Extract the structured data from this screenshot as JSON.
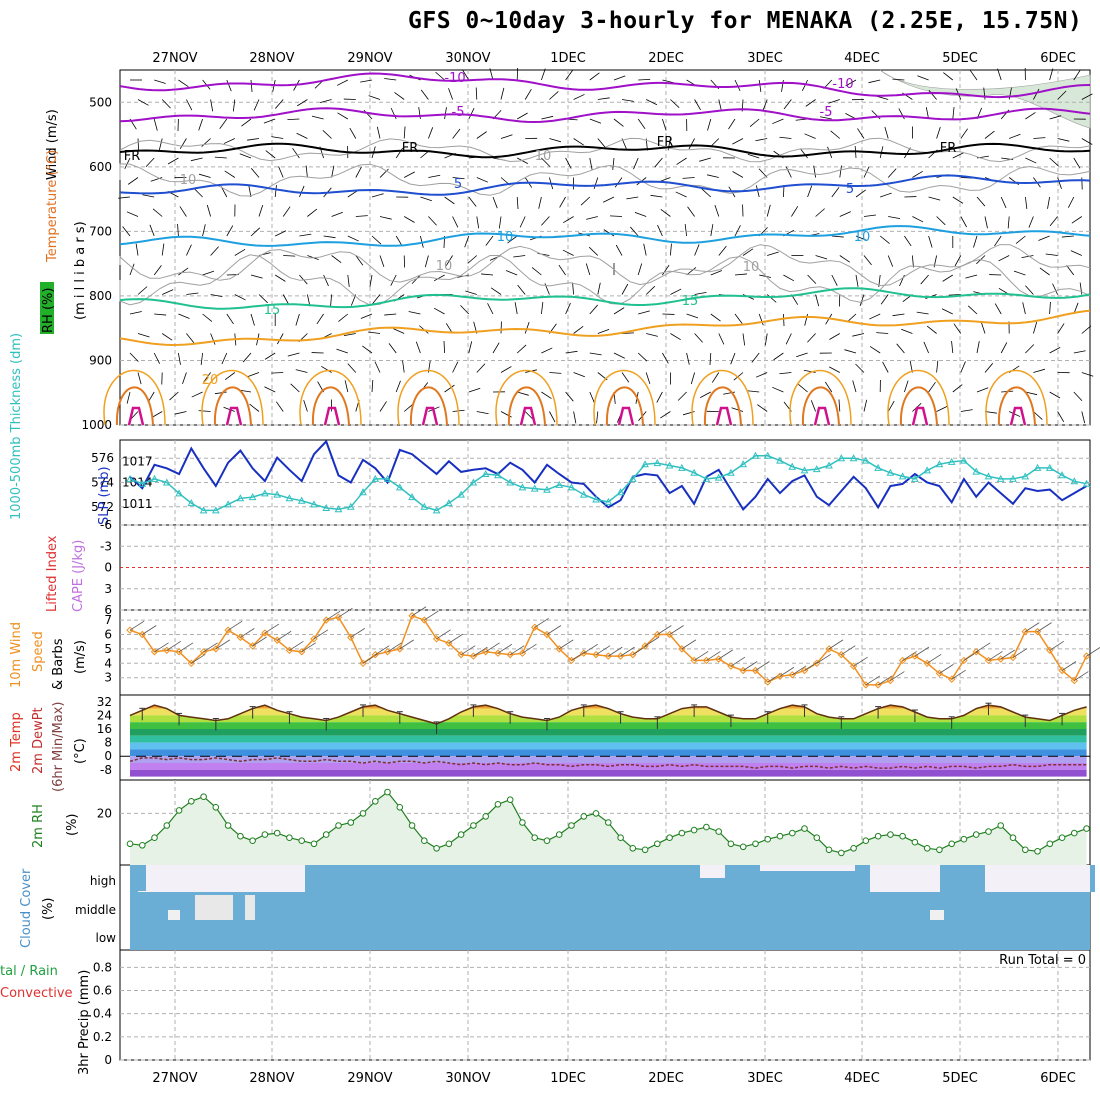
{
  "title": "GFS 0~10day 3-hourly for MENAKA (2.25E, 15.75N)",
  "colors": {
    "purple": "#a010c8",
    "black": "#000000",
    "blue": "#1f4fd0",
    "lightblue": "#1ea0e0",
    "green": "#20c090",
    "orange": "#f0a020",
    "darkorange": "#e07820",
    "magenta": "#d0108c",
    "gray": "#a0a0a0",
    "slp": "#1830c0",
    "thick": "#30c0c0",
    "wind10": "#f09020",
    "rh2m": "#208020",
    "cloud": "#6aaed6",
    "li": "#e03030"
  },
  "chart_data": [
    {
      "type": "line",
      "name": "upper-air",
      "title": "Wind (m/s) / Temperature (°C) / RH (%)",
      "ylabel": "(millibars)",
      "yticks": [
        "500",
        "600",
        "700",
        "800",
        "900",
        "1000"
      ],
      "ylim": [
        1000,
        450
      ],
      "x_dates": [
        "27NOV",
        "28NOV",
        "29NOV",
        "30NOV",
        "1DEC",
        "2DEC",
        "3DEC",
        "4DEC",
        "5DEC",
        "6DEC"
      ],
      "isotherms": [
        {
          "label": "-10",
          "color": "purple",
          "pressure": 475
        },
        {
          "label": "-5",
          "color": "purple",
          "pressure": 520
        },
        {
          "label": "FR",
          "color": "black",
          "pressure": 575
        },
        {
          "label": "5",
          "color": "blue",
          "pressure": 640
        },
        {
          "label": "10",
          "color": "lightblue",
          "pressure": 720
        },
        {
          "label": "15",
          "color": "green",
          "pressure": 815
        },
        {
          "label": "20",
          "color": "orange",
          "pressure": 870
        }
      ],
      "contour_labels": [
        "-10",
        "-5",
        "FR",
        "5",
        "10",
        "15",
        "20",
        "-10",
        "-5",
        "FR",
        "5",
        "10",
        "15",
        "FR",
        "10",
        "10",
        "10",
        "10",
        "FR",
        "FR"
      ]
    },
    {
      "type": "line",
      "name": "thickness-slp",
      "ylabel_left": "1000-500mb Thickness (dm)",
      "ylabel_right": "SLP (mb)",
      "yticks_left": [
        "576",
        "574",
        "572"
      ],
      "yticks_right": [
        "1017",
        "1014",
        "1011"
      ],
      "series": [
        {
          "name": "SLP",
          "unit": "mb",
          "values": [
            1014.8,
            1013.2,
            1016.5,
            1016.0,
            1015.2,
            1018.8,
            1016.0,
            1013.5,
            1016.8,
            1018.5,
            1016.0,
            1014.2,
            1017.5,
            1015.8,
            1014.2,
            1018.0,
            1019.8,
            1015.0,
            1014.0,
            1017.2,
            1016.0,
            1014.0,
            1018.6,
            1018.0,
            1016.6,
            1015.2,
            1017.0,
            1015.5,
            1015.8,
            1016.0,
            1015.2,
            1016.8,
            1015.8,
            1014.0,
            1016.5,
            1015.2,
            1014.0,
            1013.8,
            1012.0,
            1010.5,
            1011.5,
            1014.8,
            1015.2,
            1015.0,
            1012.5,
            1013.5,
            1011.0,
            1014.8,
            1015.8,
            1013.0,
            1010.2,
            1012.0,
            1014.5,
            1012.5,
            1014.2,
            1015.0,
            1012.0,
            1010.8,
            1012.8,
            1014.8,
            1013.2,
            1010.5,
            1013.5,
            1013.8,
            1015.2,
            1014.0,
            1013.5,
            1011.2,
            1014.5,
            1012.0,
            1014.0,
            1012.5,
            1011.0,
            1013.2,
            1012.8,
            1013.0,
            1011.5,
            1012.5,
            1013.5
          ]
        },
        {
          "name": "1000-500mb Thickness",
          "unit": "dm",
          "values": [
            574.3,
            573.9,
            574.3,
            574.0,
            573.1,
            572.3,
            571.7,
            571.7,
            572.2,
            572.7,
            572.8,
            573.1,
            573.0,
            572.7,
            572.5,
            572.2,
            571.9,
            571.8,
            572.0,
            573.2,
            574.3,
            574.3,
            573.6,
            572.8,
            572.0,
            571.7,
            572.3,
            573.0,
            574.0,
            574.7,
            574.6,
            574.0,
            573.6,
            573.5,
            573.4,
            573.8,
            573.6,
            573.0,
            572.6,
            572.4,
            573.2,
            574.3,
            575.5,
            575.6,
            575.4,
            575.2,
            574.8,
            574.3,
            574.4,
            574.8,
            575.5,
            576.2,
            576.2,
            575.8,
            575.3,
            575.0,
            575.1,
            575.4,
            576.0,
            576.0,
            575.8,
            575.2,
            574.8,
            574.5,
            574.3,
            575.0,
            575.5,
            575.7,
            575.8,
            574.9,
            574.5,
            574.3,
            574.3,
            574.5,
            575.2,
            575.2,
            574.6,
            574.1,
            573.9
          ]
        }
      ]
    },
    {
      "type": "line",
      "name": "lifted-index-cape",
      "ylabel_left": "Lifted Index",
      "ylabel_right": "CAPE (J/kg)",
      "yticks": [
        "-6",
        "-3",
        "0",
        "3",
        "6"
      ],
      "ylim": [
        -6,
        6
      ],
      "series": [
        {
          "name": "Lifted Index",
          "values": [
            0
          ]
        }
      ]
    },
    {
      "type": "line",
      "name": "wind10m",
      "ylabel": "10m Wind Speed & Barbs (m/s)",
      "yticks": [
        "7",
        "6",
        "5",
        "4",
        "3"
      ],
      "ylim": [
        2,
        7.5
      ],
      "series": [
        {
          "name": "10m Wind Speed",
          "unit": "m/s",
          "values": [
            6.3,
            6.0,
            4.8,
            4.9,
            4.8,
            4.0,
            4.8,
            5.0,
            6.3,
            5.8,
            5.2,
            6.1,
            5.6,
            4.9,
            4.8,
            5.7,
            7.0,
            7.2,
            5.8,
            4.0,
            4.6,
            4.8,
            5.0,
            7.3,
            7.0,
            5.7,
            5.4,
            4.6,
            4.5,
            4.8,
            4.7,
            4.6,
            4.7,
            6.5,
            6.0,
            5.0,
            4.2,
            4.7,
            4.6,
            4.5,
            4.5,
            4.6,
            5.2,
            6.0,
            6.0,
            5.0,
            4.2,
            4.2,
            4.3,
            3.8,
            3.5,
            3.5,
            2.7,
            3.1,
            3.2,
            3.5,
            4.0,
            5.0,
            4.6,
            3.8,
            2.5,
            2.5,
            2.8,
            4.2,
            4.5,
            4.0,
            3.3,
            2.9,
            4.2,
            4.8,
            4.2,
            4.3,
            4.4,
            6.2,
            6.2,
            4.9,
            3.5,
            2.8,
            4.5
          ]
        }
      ]
    },
    {
      "type": "area",
      "name": "temp-dewpt",
      "ylabel": "2m Temp / 2m DewPt (6hr Min/Max) (°C)",
      "yticks": [
        "32",
        "24",
        "16",
        "8",
        "0",
        "-8"
      ],
      "ylim": [
        -12,
        34
      ],
      "series": [
        {
          "name": "2m Temp",
          "unit": "°C",
          "values": [
            24,
            27,
            30,
            28,
            24,
            23,
            22,
            21,
            22,
            25,
            28,
            30,
            27,
            25,
            23,
            22,
            21,
            23,
            26,
            29,
            30,
            27,
            25,
            23,
            21,
            19,
            22,
            26,
            29,
            30,
            28,
            25,
            23,
            22,
            21,
            23,
            27,
            29,
            30,
            28,
            25,
            23,
            22,
            22,
            25,
            28,
            29,
            29,
            26,
            23,
            22,
            22,
            25,
            28,
            30,
            29,
            25,
            23,
            22,
            22,
            25,
            28,
            30,
            29,
            26,
            23,
            22,
            22,
            24,
            28,
            30,
            29,
            26,
            23,
            22,
            21,
            24,
            27,
            29
          ]
        },
        {
          "name": "2m DewPt",
          "unit": "°C",
          "values": [
            -3,
            -1,
            -1,
            -2,
            -1,
            -2,
            -2,
            -1,
            -2,
            -3,
            -2,
            -2,
            -1,
            -2,
            -3,
            -3,
            -2,
            -3,
            -3,
            -4,
            -3,
            -4,
            -3,
            -3,
            -4,
            -3,
            -4,
            -5,
            -4,
            -5,
            -4,
            -5,
            -5,
            -4,
            -5,
            -5,
            -6,
            -5,
            -5,
            -6,
            -5,
            -5,
            -6,
            -6,
            -5,
            -6,
            -5,
            -6,
            -6,
            -6,
            -6,
            -7,
            -6,
            -6,
            -7,
            -6,
            -6,
            -7,
            -6,
            -7,
            -6,
            -7,
            -7,
            -6,
            -7,
            -6,
            -7,
            -6,
            -6,
            -7,
            -6,
            -6,
            -5,
            -6,
            -6,
            -5,
            -5,
            -5,
            -5
          ]
        }
      ]
    },
    {
      "type": "area",
      "name": "rh2m",
      "ylabel": "2m RH (%)",
      "yticks": [
        "20"
      ],
      "ylim": [
        3,
        31
      ],
      "series": [
        {
          "name": "2m RH",
          "unit": "%",
          "values": [
            10,
            9.5,
            12,
            16,
            21,
            24,
            25.5,
            22,
            16,
            12.5,
            11,
            13,
            13.5,
            12,
            11,
            10,
            13,
            16,
            17,
            20,
            24,
            27,
            22,
            16,
            11,
            8.5,
            10,
            13,
            16,
            19,
            23,
            24.5,
            17,
            12,
            11,
            13,
            16,
            19,
            20,
            17,
            12,
            8.5,
            8,
            10,
            12,
            13.5,
            14.5,
            15.5,
            14,
            10,
            9,
            10,
            11.5,
            12.5,
            13.5,
            15,
            12,
            8,
            7,
            8.5,
            11,
            12.5,
            13,
            12.5,
            10.5,
            8.5,
            8,
            10,
            11.5,
            13,
            14,
            16,
            12,
            8,
            7.5,
            10,
            12,
            13.5,
            15
          ]
        }
      ]
    },
    {
      "type": "bar",
      "name": "cloud-cover",
      "ylabel": "Cloud Cover (%)",
      "ylevels": [
        "high",
        "middle",
        "low"
      ]
    },
    {
      "type": "bar",
      "name": "precip",
      "ylabel_left": "3hr Precip (mm)",
      "ylabel_legend": [
        "Total / Rain",
        "Convective"
      ],
      "yticks": [
        "0.8",
        "0.6",
        "0.4",
        "0.2",
        "0"
      ],
      "ylim": [
        0,
        0.95
      ],
      "run_total": "Run Total = 0",
      "series": [
        {
          "name": "3hr Precip",
          "unit": "mm",
          "values": [
            0
          ]
        }
      ]
    }
  ],
  "labels": {
    "wind": "Wind (m/s)",
    "temperature": "Temperature (°C)",
    "rh": "RH (%)",
    "millibars": "(m i l l i b a r s)",
    "thickness": "1000-500mb Thickness (dm)",
    "slp": "SLP (mb)",
    "lifted_index": "Lifted Index",
    "cape": "CAPE (J/kg)",
    "wind10m_a": "10m Wind",
    "wind10m_b": "Speed",
    "wind10m_c": "& Barbs",
    "wind10m_unit": "(m/s)",
    "temp2m_a": "2m Temp",
    "temp2m_b": "2m DewPt",
    "temp2m_c": "(6hr Min/Max)",
    "temp_unit": "(°C)",
    "rh2m": "2m RH",
    "rh_unit": "(%)",
    "cloud": "Cloud Cover",
    "cloud_unit": "(%)",
    "precip": "3hr Precip (mm)",
    "total_rain": "tal / Rain",
    "convective": "Convective"
  }
}
